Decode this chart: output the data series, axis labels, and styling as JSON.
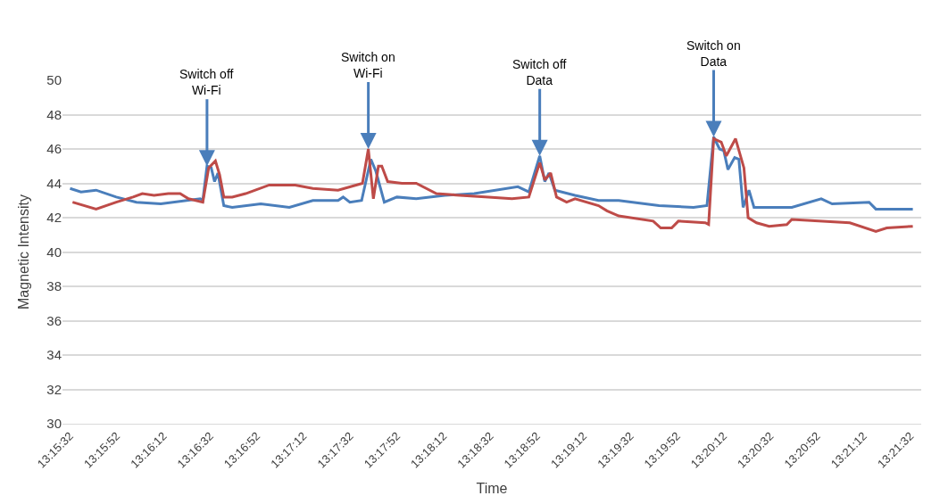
{
  "chart_data": {
    "type": "line",
    "xlabel": "Time",
    "ylabel": "Magnetic Intensity",
    "xlim": [
      13.258,
      13.3602
    ],
    "ylim": [
      30,
      50
    ],
    "yticks": [
      30,
      32,
      34,
      36,
      38,
      40,
      42,
      44,
      46,
      48,
      50
    ],
    "xticks": [
      {
        "value": 13.25889,
        "label": "13:15:32"
      },
      {
        "value": 13.26444,
        "label": "13:15:52"
      },
      {
        "value": 13.27,
        "label": "13:16:12"
      },
      {
        "value": 13.27556,
        "label": "13:16:32"
      },
      {
        "value": 13.28111,
        "label": "13:16:52"
      },
      {
        "value": 13.28667,
        "label": "13:17:12"
      },
      {
        "value": 13.29222,
        "label": "13:17:32"
      },
      {
        "value": 13.29778,
        "label": "13:17:52"
      },
      {
        "value": 13.30333,
        "label": "13:18:12"
      },
      {
        "value": 13.30889,
        "label": "13:18:32"
      },
      {
        "value": 13.31444,
        "label": "13:18:52"
      },
      {
        "value": 13.32,
        "label": "13:19:12"
      },
      {
        "value": 13.32556,
        "label": "13:19:32"
      },
      {
        "value": 13.33111,
        "label": "13:19:52"
      },
      {
        "value": 13.33667,
        "label": "13:20:12"
      },
      {
        "value": 13.34222,
        "label": "13:20:32"
      },
      {
        "value": 13.34778,
        "label": "13:20:52"
      },
      {
        "value": 13.35333,
        "label": "13:21:12"
      },
      {
        "value": 13.35889,
        "label": "13:21:32"
      }
    ],
    "grid": "y",
    "marker": "none",
    "line_style": "solid",
    "annotations": [
      {
        "text": "Switch off\nWi-Fi",
        "x": 13.2752,
        "y": 45.0
      },
      {
        "text": "Switch on\nWi-Fi",
        "x": 13.2944,
        "y": 46.0
      },
      {
        "text": "Switch off\nData",
        "x": 13.3148,
        "y": 45.6
      },
      {
        "text": "Switch on\nData",
        "x": 13.3355,
        "y": 46.7
      }
    ],
    "series": [
      {
        "color": "#4a7ebb",
        "x": [
          13.2589,
          13.2602,
          13.262,
          13.2644,
          13.2668,
          13.2697,
          13.2744,
          13.2747,
          13.2752,
          13.2757,
          13.2761,
          13.2765,
          13.2772,
          13.2782,
          13.2816,
          13.285,
          13.2878,
          13.2908,
          13.2914,
          13.2922,
          13.2936,
          13.2947,
          13.2953,
          13.2963,
          13.2978,
          13.3001,
          13.3035,
          13.307,
          13.3122,
          13.3135,
          13.3148,
          13.3154,
          13.3159,
          13.3166,
          13.319,
          13.3218,
          13.3242,
          13.329,
          13.3331,
          13.3347,
          13.3355,
          13.3362,
          13.3367,
          13.3372,
          13.338,
          13.3385,
          13.339,
          13.3397,
          13.3403,
          13.3448,
          13.3483,
          13.3496,
          13.354,
          13.3548,
          13.3592
        ],
        "values": [
          43.7,
          43.5,
          43.6,
          43.2,
          42.9,
          42.8,
          43.1,
          43.0,
          45.0,
          44.9,
          44.1,
          44.6,
          42.7,
          42.6,
          42.8,
          42.6,
          43.0,
          43.0,
          43.2,
          42.9,
          43.0,
          45.4,
          44.7,
          42.9,
          43.2,
          43.1,
          43.3,
          43.4,
          43.8,
          43.5,
          45.6,
          44.1,
          44.6,
          43.6,
          43.3,
          43.0,
          43.0,
          42.7,
          42.6,
          42.7,
          46.7,
          46.0,
          45.9,
          44.8,
          45.5,
          45.4,
          42.6,
          43.6,
          42.6,
          42.6,
          43.1,
          42.8,
          42.9,
          42.5,
          42.5
        ]
      },
      {
        "color": "#be4b48",
        "x": [
          13.2592,
          13.262,
          13.2644,
          13.2664,
          13.2675,
          13.2689,
          13.2706,
          13.272,
          13.273,
          13.2747,
          13.2754,
          13.2762,
          13.2767,
          13.2772,
          13.2782,
          13.2798,
          13.2826,
          13.2857,
          13.2878,
          13.2908,
          13.2937,
          13.2944,
          13.295,
          13.2956,
          13.296,
          13.2967,
          13.2984,
          13.3001,
          13.3025,
          13.3053,
          13.3087,
          13.3115,
          13.3135,
          13.3148,
          13.3154,
          13.3161,
          13.3168,
          13.318,
          13.319,
          13.3218,
          13.3228,
          13.3242,
          13.3283,
          13.3292,
          13.3305,
          13.3313,
          13.3345,
          13.3349,
          13.3355,
          13.3364,
          13.337,
          13.3381,
          13.3391,
          13.3396,
          13.3406,
          13.3421,
          13.3442,
          13.3448,
          13.3517,
          13.3548,
          13.3561,
          13.3592
        ],
        "values": [
          42.9,
          42.5,
          42.9,
          43.2,
          43.4,
          43.3,
          43.4,
          43.4,
          43.1,
          42.9,
          44.9,
          45.3,
          44.5,
          43.2,
          43.2,
          43.4,
          43.9,
          43.9,
          43.7,
          43.6,
          44.0,
          46.0,
          43.1,
          45.0,
          45.0,
          44.1,
          44.0,
          44.0,
          43.4,
          43.3,
          43.2,
          43.1,
          43.2,
          45.2,
          44.2,
          44.6,
          43.2,
          42.9,
          43.1,
          42.7,
          42.4,
          42.1,
          41.8,
          41.4,
          41.4,
          41.8,
          41.7,
          41.6,
          46.6,
          46.4,
          45.6,
          46.6,
          44.9,
          42.0,
          41.7,
          41.5,
          41.6,
          41.9,
          41.7,
          41.2,
          41.4,
          41.5
        ]
      }
    ]
  }
}
